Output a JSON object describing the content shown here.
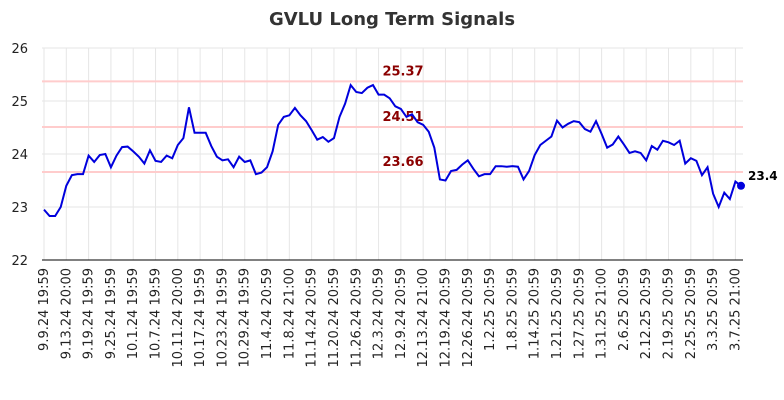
{
  "chart_data": {
    "type": "line",
    "title": "GVLU Long Term Signals",
    "categories": [
      "9.9.24 19:59",
      null,
      null,
      null,
      "9.13.24 20:00",
      null,
      null,
      null,
      "9.19.24 19:59",
      null,
      null,
      null,
      "9.25.24 19:59",
      null,
      null,
      null,
      "10.1.24 19:59",
      null,
      null,
      null,
      "10.7.24 19:59",
      null,
      null,
      null,
      "10.11.24 20:00",
      null,
      null,
      null,
      "10.17.24 19:59",
      null,
      null,
      null,
      "10.23.24 19:59",
      null,
      null,
      null,
      "10.29.24 19:59",
      null,
      null,
      null,
      "11.4.24 20:59",
      null,
      null,
      null,
      "11.8.24 21:00",
      null,
      null,
      null,
      "11.14.24 20:59",
      null,
      null,
      null,
      "11.20.24 20:59",
      null,
      null,
      null,
      "11.26.24 20:59",
      null,
      null,
      null,
      "12.3.24 20:59",
      null,
      null,
      null,
      "12.9.24 20:59",
      null,
      null,
      null,
      "12.13.24 21:00",
      null,
      null,
      null,
      "12.19.24 20:59",
      null,
      null,
      null,
      "12.26.24 20:59",
      null,
      null,
      null,
      "1.2.25 20:59",
      null,
      null,
      null,
      "1.8.25 20:59",
      null,
      null,
      null,
      "1.14.25 20:59",
      null,
      null,
      null,
      "1.21.25 20:59",
      null,
      null,
      null,
      "1.27.25 20:59",
      null,
      null,
      null,
      "1.31.25 21:00",
      null,
      null,
      null,
      "2.6.25 20:59",
      null,
      null,
      null,
      "2.12.25 20:59",
      null,
      null,
      null,
      "2.19.25 20:59",
      null,
      null,
      null,
      "2.25.25 20:59",
      null,
      null,
      null,
      "3.3.25 20:59",
      null,
      null,
      null,
      "3.7.25 21:00",
      null
    ],
    "series": [
      {
        "color": "#0000dd",
        "values": [
          22.95,
          22.83,
          22.83,
          23.0,
          23.4,
          23.6,
          23.62,
          23.62,
          23.97,
          23.85,
          23.98,
          24.0,
          23.75,
          23.97,
          24.13,
          24.14,
          24.05,
          23.95,
          23.82,
          24.07,
          23.87,
          23.85,
          23.97,
          23.92,
          24.17,
          24.3,
          24.88,
          24.4,
          24.4,
          24.4,
          24.15,
          23.95,
          23.88,
          23.9,
          23.75,
          23.95,
          23.85,
          23.88,
          23.62,
          23.65,
          23.75,
          24.05,
          24.55,
          24.7,
          24.73,
          24.87,
          24.73,
          24.62,
          24.45,
          24.27,
          24.32,
          24.23,
          24.3,
          24.7,
          24.95,
          25.3,
          25.17,
          25.15,
          25.25,
          25.3,
          25.12,
          25.12,
          25.05,
          24.9,
          24.85,
          24.7,
          24.75,
          24.6,
          24.55,
          24.42,
          24.12,
          23.52,
          23.5,
          23.68,
          23.7,
          23.8,
          23.88,
          23.72,
          23.58,
          23.62,
          23.62,
          23.77,
          23.77,
          23.76,
          23.77,
          23.76,
          23.52,
          23.68,
          23.98,
          24.17,
          24.25,
          24.33,
          24.63,
          24.5,
          24.57,
          24.62,
          24.6,
          24.47,
          24.42,
          24.62,
          24.38,
          24.12,
          24.18,
          24.33,
          24.18,
          24.02,
          24.05,
          24.02,
          23.88,
          24.15,
          24.08,
          24.25,
          24.22,
          24.17,
          24.25,
          23.82,
          23.92,
          23.87,
          23.6,
          23.75,
          23.25,
          23.0,
          23.27,
          23.15,
          23.48,
          23.4
        ]
      }
    ],
    "hlines": [
      {
        "value": 25.37,
        "color": "#ffcccc"
      },
      {
        "value": 24.51,
        "color": "#ffcccc"
      },
      {
        "value": 23.66,
        "color": "#ffcccc"
      }
    ],
    "ylim": [
      22,
      26
    ],
    "yticks": [
      22,
      23,
      24,
      25,
      26
    ],
    "grid": true
  }
}
